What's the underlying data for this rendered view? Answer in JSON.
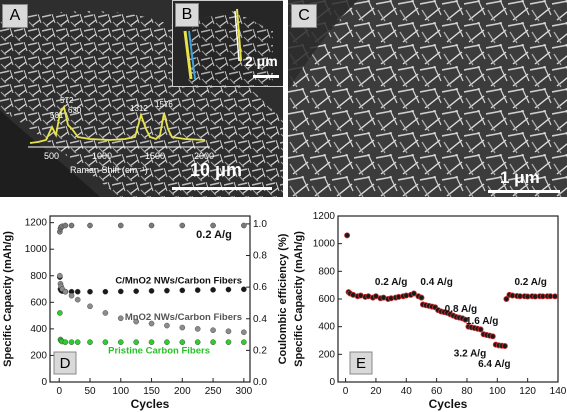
{
  "panels": {
    "A": {
      "label": "A",
      "scale_bar": "10 μm",
      "raman": {
        "xlabel": "Raman Shift (cm⁻¹)",
        "ticks": [
          "500",
          "1000",
          "1500",
          "2000"
        ],
        "peaks": [
          "501",
          "572",
          "630",
          "1312",
          "1576"
        ]
      }
    },
    "B": {
      "label": "B",
      "scale_bar": "2 μm"
    },
    "C": {
      "label": "C",
      "scale_bar": "1 μm"
    },
    "D": {
      "label": "D"
    },
    "E": {
      "label": "E"
    }
  },
  "chart_data": [
    {
      "id": "D",
      "type": "scatter",
      "xlabel": "Cycles",
      "ylabel": "Specific Capacity (mAh/g)",
      "y2label": "Coulombic efficiency (%)",
      "xlim": [
        -15,
        310
      ],
      "ylim": [
        0,
        1250
      ],
      "y2lim": [
        0,
        1.05
      ],
      "xticks": [
        0,
        50,
        100,
        150,
        200,
        250,
        300
      ],
      "yticks": [
        0,
        200,
        400,
        600,
        800,
        1000,
        1200
      ],
      "y2ticks": [
        0.0,
        0.2,
        0.4,
        0.6,
        0.8,
        1.0
      ],
      "annotation": "0.2 A/g",
      "series": [
        {
          "name": "C/MnO2 NWs/Carbon Fibers",
          "color": "#1a1a1a",
          "x": [
            1,
            2,
            3,
            5,
            10,
            20,
            30,
            50,
            75,
            100,
            125,
            150,
            175,
            200,
            225,
            250,
            275,
            300
          ],
          "y": [
            790,
            700,
            690,
            685,
            680,
            680,
            680,
            680,
            680,
            682,
            684,
            686,
            688,
            690,
            692,
            694,
            696,
            698
          ]
        },
        {
          "name": "MnO2 NWs/Carbon Fibers",
          "color": "#8c8c8c",
          "x": [
            1,
            2,
            3,
            5,
            10,
            20,
            30,
            50,
            75,
            100,
            125,
            150,
            175,
            200,
            225,
            250,
            275,
            300
          ],
          "y": [
            800,
            740,
            720,
            700,
            680,
            650,
            620,
            570,
            520,
            480,
            455,
            440,
            425,
            410,
            400,
            390,
            382,
            375
          ]
        },
        {
          "name": "Pristine Carbon Fibers",
          "color": "#2ecc2e",
          "x": [
            1,
            2,
            3,
            5,
            10,
            20,
            30,
            50,
            75,
            100,
            125,
            150,
            175,
            200,
            225,
            250,
            275,
            300
          ],
          "y": [
            520,
            320,
            310,
            305,
            300,
            300,
            300,
            300,
            300,
            300,
            300,
            300,
            300,
            300,
            300,
            300,
            300,
            300
          ]
        },
        {
          "name": "Coulombic efficiency",
          "color": "#7a7a7a",
          "axis": "right",
          "x": [
            1,
            2,
            3,
            5,
            10,
            20,
            50,
            100,
            150,
            200,
            250,
            300
          ],
          "y": [
            0.95,
            0.97,
            0.98,
            0.985,
            0.99,
            0.99,
            0.99,
            0.99,
            0.99,
            0.99,
            0.99,
            0.99
          ]
        }
      ],
      "series_labels": [
        {
          "text": "C/MnO2 NWs/Carbon Fibers"
        },
        {
          "text": "MnO2 NWs/Carbon Fibers"
        },
        {
          "text": "Pristine Carbon Fibers"
        }
      ]
    },
    {
      "id": "E",
      "type": "scatter",
      "xlabel": "Cycles",
      "ylabel": "Specific Capacity (mAh/g)",
      "xlim": [
        -5,
        140
      ],
      "ylim": [
        0,
        1200
      ],
      "xticks": [
        0,
        20,
        40,
        60,
        80,
        100,
        120,
        140
      ],
      "yticks": [
        0,
        200,
        400,
        600,
        800,
        1000,
        1200
      ],
      "annotations": [
        "0.2 A/g",
        "0.4 A/g",
        "0.8 A/g",
        "1.6 A/g",
        "3.2 A/g",
        "6.4 A/g",
        "0.2 A/g"
      ],
      "series": [
        {
          "name": "rate",
          "color": "#1a1a1a",
          "marker_edge": "#d63030",
          "x": [
            1,
            2,
            3,
            5,
            8,
            10,
            13,
            15,
            18,
            20,
            23,
            25,
            28,
            30,
            33,
            35,
            38,
            40,
            43,
            45,
            48,
            50,
            51,
            53,
            55,
            57,
            59,
            61,
            63,
            65,
            67,
            69,
            71,
            73,
            75,
            77,
            79,
            81,
            83,
            85,
            87,
            89,
            91,
            93,
            95,
            97,
            99,
            101,
            103,
            105,
            106,
            108,
            110,
            113,
            115,
            118,
            120,
            123,
            125,
            128,
            130,
            133,
            135,
            138
          ],
          "y": [
            1060,
            650,
            640,
            630,
            620,
            625,
            615,
            620,
            610,
            620,
            605,
            610,
            600,
            605,
            610,
            615,
            620,
            625,
            630,
            640,
            620,
            610,
            560,
            555,
            550,
            545,
            540,
            520,
            510,
            505,
            500,
            490,
            480,
            470,
            465,
            460,
            450,
            400,
            395,
            390,
            385,
            380,
            345,
            340,
            335,
            330,
            270,
            265,
            262,
            260,
            600,
            630,
            625,
            622,
            620,
            620,
            618,
            620,
            618,
            620,
            619,
            620,
            620,
            619
          ]
        }
      ]
    }
  ]
}
